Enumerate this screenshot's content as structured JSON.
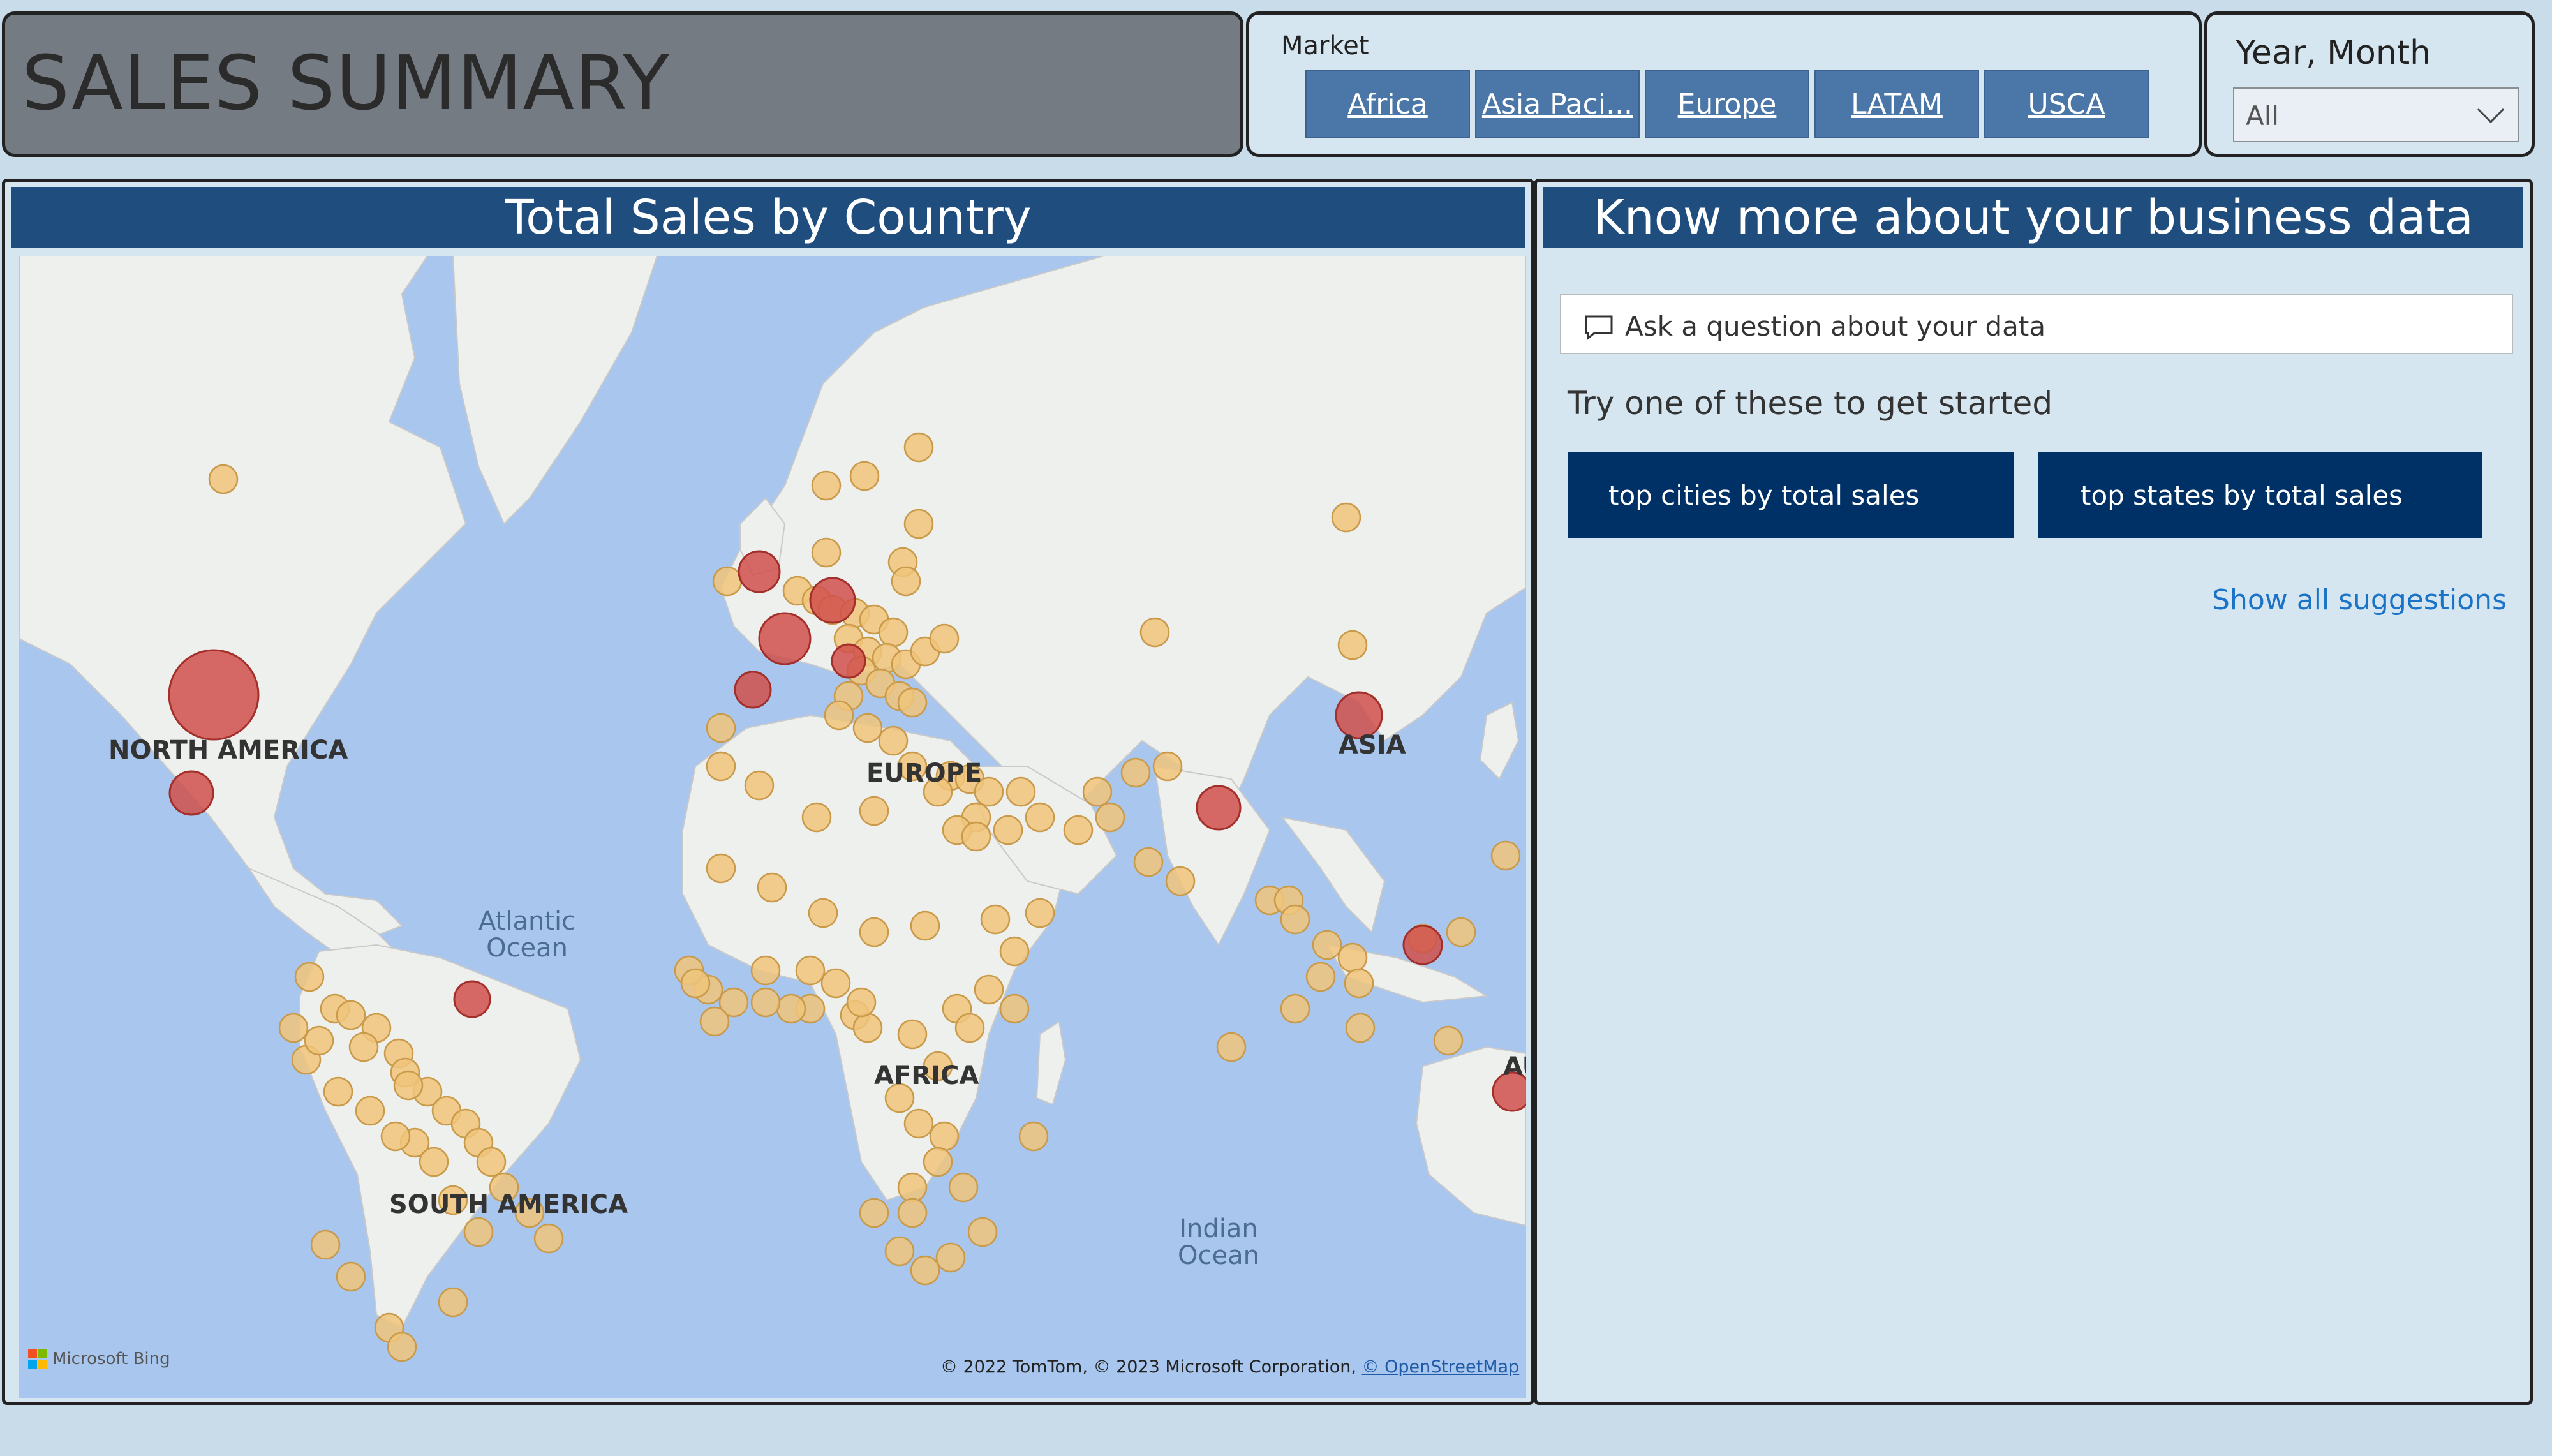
{
  "header": {
    "title": "SALES SUMMARY"
  },
  "market_slicer": {
    "label": "Market",
    "options": [
      "Africa",
      "Asia Paci...",
      "Europe",
      "LATAM",
      "USCA"
    ]
  },
  "year_slicer": {
    "label": "Year, Month",
    "selected": "All"
  },
  "map_visual": {
    "title": "Total Sales by Country",
    "continent_labels": [
      "NORTH AMERICA",
      "SOUTH AMERICA",
      "EUROPE",
      "AFRICA",
      "ASIA",
      "AU"
    ],
    "ocean_labels": [
      "Atlantic\nOcean",
      "Indian\nOcean"
    ],
    "logo_text": "Microsoft Bing",
    "attribution": "© 2022 TomTom, © 2023 Microsoft Corporation, ",
    "attribution_link": "© OpenStreetMap",
    "colors": {
      "ocean": "#a9c7ee",
      "land": "#eef0ee",
      "bubble_small": "#f0c47a",
      "bubble_large": "#d0504b"
    }
  },
  "qa_visual": {
    "title": "Know more about your business data",
    "input_placeholder": "Ask a question about your data",
    "prompt": "Try one of these to get started",
    "suggestions": [
      "top cities by total sales",
      "top states by total sales"
    ],
    "show_all": "Show all suggestions"
  }
}
